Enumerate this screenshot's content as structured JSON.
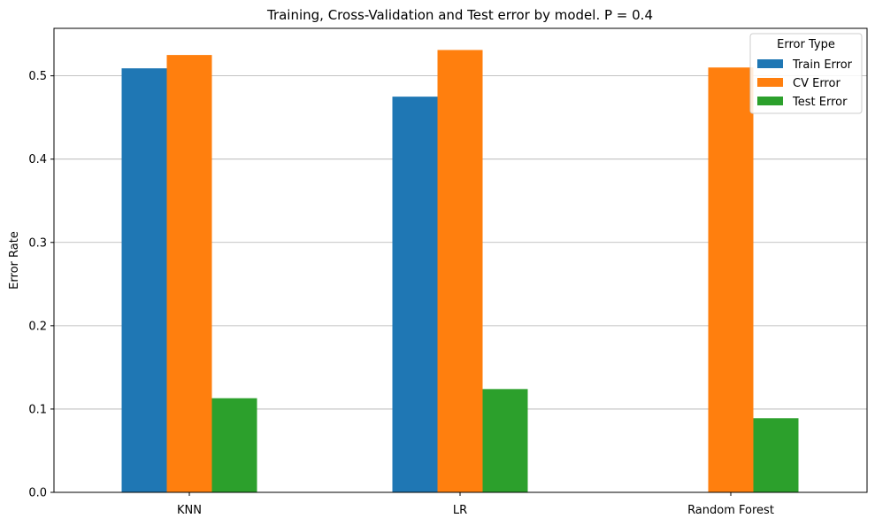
{
  "chart_data": {
    "type": "bar",
    "title": "Training, Cross-Validation and Test error by model. P = 0.4",
    "xlabel": "",
    "ylabel": "Error Rate",
    "categories": [
      "KNN",
      "LR",
      "Random Forest"
    ],
    "series": [
      {
        "name": "Train Error",
        "color": "#1f77b4",
        "values": [
          0.509,
          0.475,
          0.0
        ]
      },
      {
        "name": "CV Error",
        "color": "#ff7f0e",
        "values": [
          0.525,
          0.531,
          0.51
        ]
      },
      {
        "name": "Test Error",
        "color": "#2ca02c",
        "values": [
          0.113,
          0.124,
          0.089
        ]
      }
    ],
    "ylim": [
      0,
      0.557
    ],
    "yticks": [
      0.0,
      0.1,
      0.2,
      0.3,
      0.4,
      0.5
    ],
    "ytick_labels": [
      "0.0",
      "0.1",
      "0.2",
      "0.3",
      "0.4",
      "0.5"
    ],
    "grid": "y-axis",
    "legend": {
      "title": "Error Type",
      "placement": "top-right"
    }
  }
}
